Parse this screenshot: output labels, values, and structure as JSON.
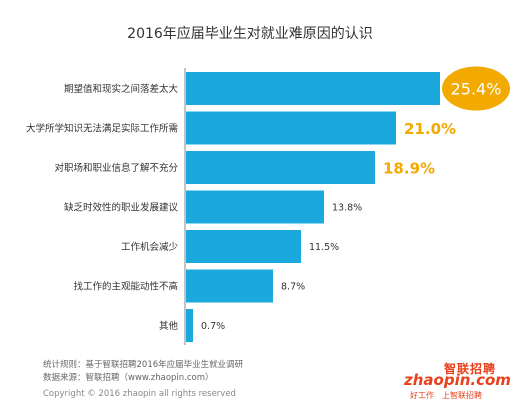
{
  "chart_data": {
    "type": "bar",
    "orientation": "horizontal",
    "title": "2016年应届毕业生对就业难原因的认识",
    "categories": [
      "期望值和现实之间落差太大",
      "大学所学知识无法满足实际工作所需",
      "对职场和职业信息了解不充分",
      "缺乏时效性的职业发展建议",
      "工作机会减少",
      "找工作的主观能动性不高",
      "其他"
    ],
    "values": [
      25.4,
      21.0,
      18.9,
      13.8,
      11.5,
      8.7,
      0.7
    ],
    "value_labels": [
      "25.4%",
      "21.0%",
      "18.9%",
      "13.8%",
      "11.5%",
      "8.7%",
      "0.7%"
    ],
    "value_unit": "%",
    "xlim": [
      0,
      25.4
    ],
    "grid": false,
    "legend": "none",
    "colors": {
      "bar": "#1ba8dc",
      "axis": "#888888",
      "highlight_label": "#f2a900",
      "bubble": "#f2a900",
      "bubble_text": "#ffffff",
      "label": "#333333",
      "title": "#333333"
    },
    "highlight_top_n": 3
  },
  "footer": {
    "source_line1": "统计规则：基于智联招聘2016年应届毕业生就业调研",
    "source_line2": "数据来源：智联招聘（www.zhaopin.com）",
    "copyright": "Copyright © 2016 zhaopin all rights reserved"
  },
  "logo": {
    "name_cn": "智联招聘",
    "name_en": "zhaopin.com",
    "slogan": "好工作　上智联招聘"
  }
}
